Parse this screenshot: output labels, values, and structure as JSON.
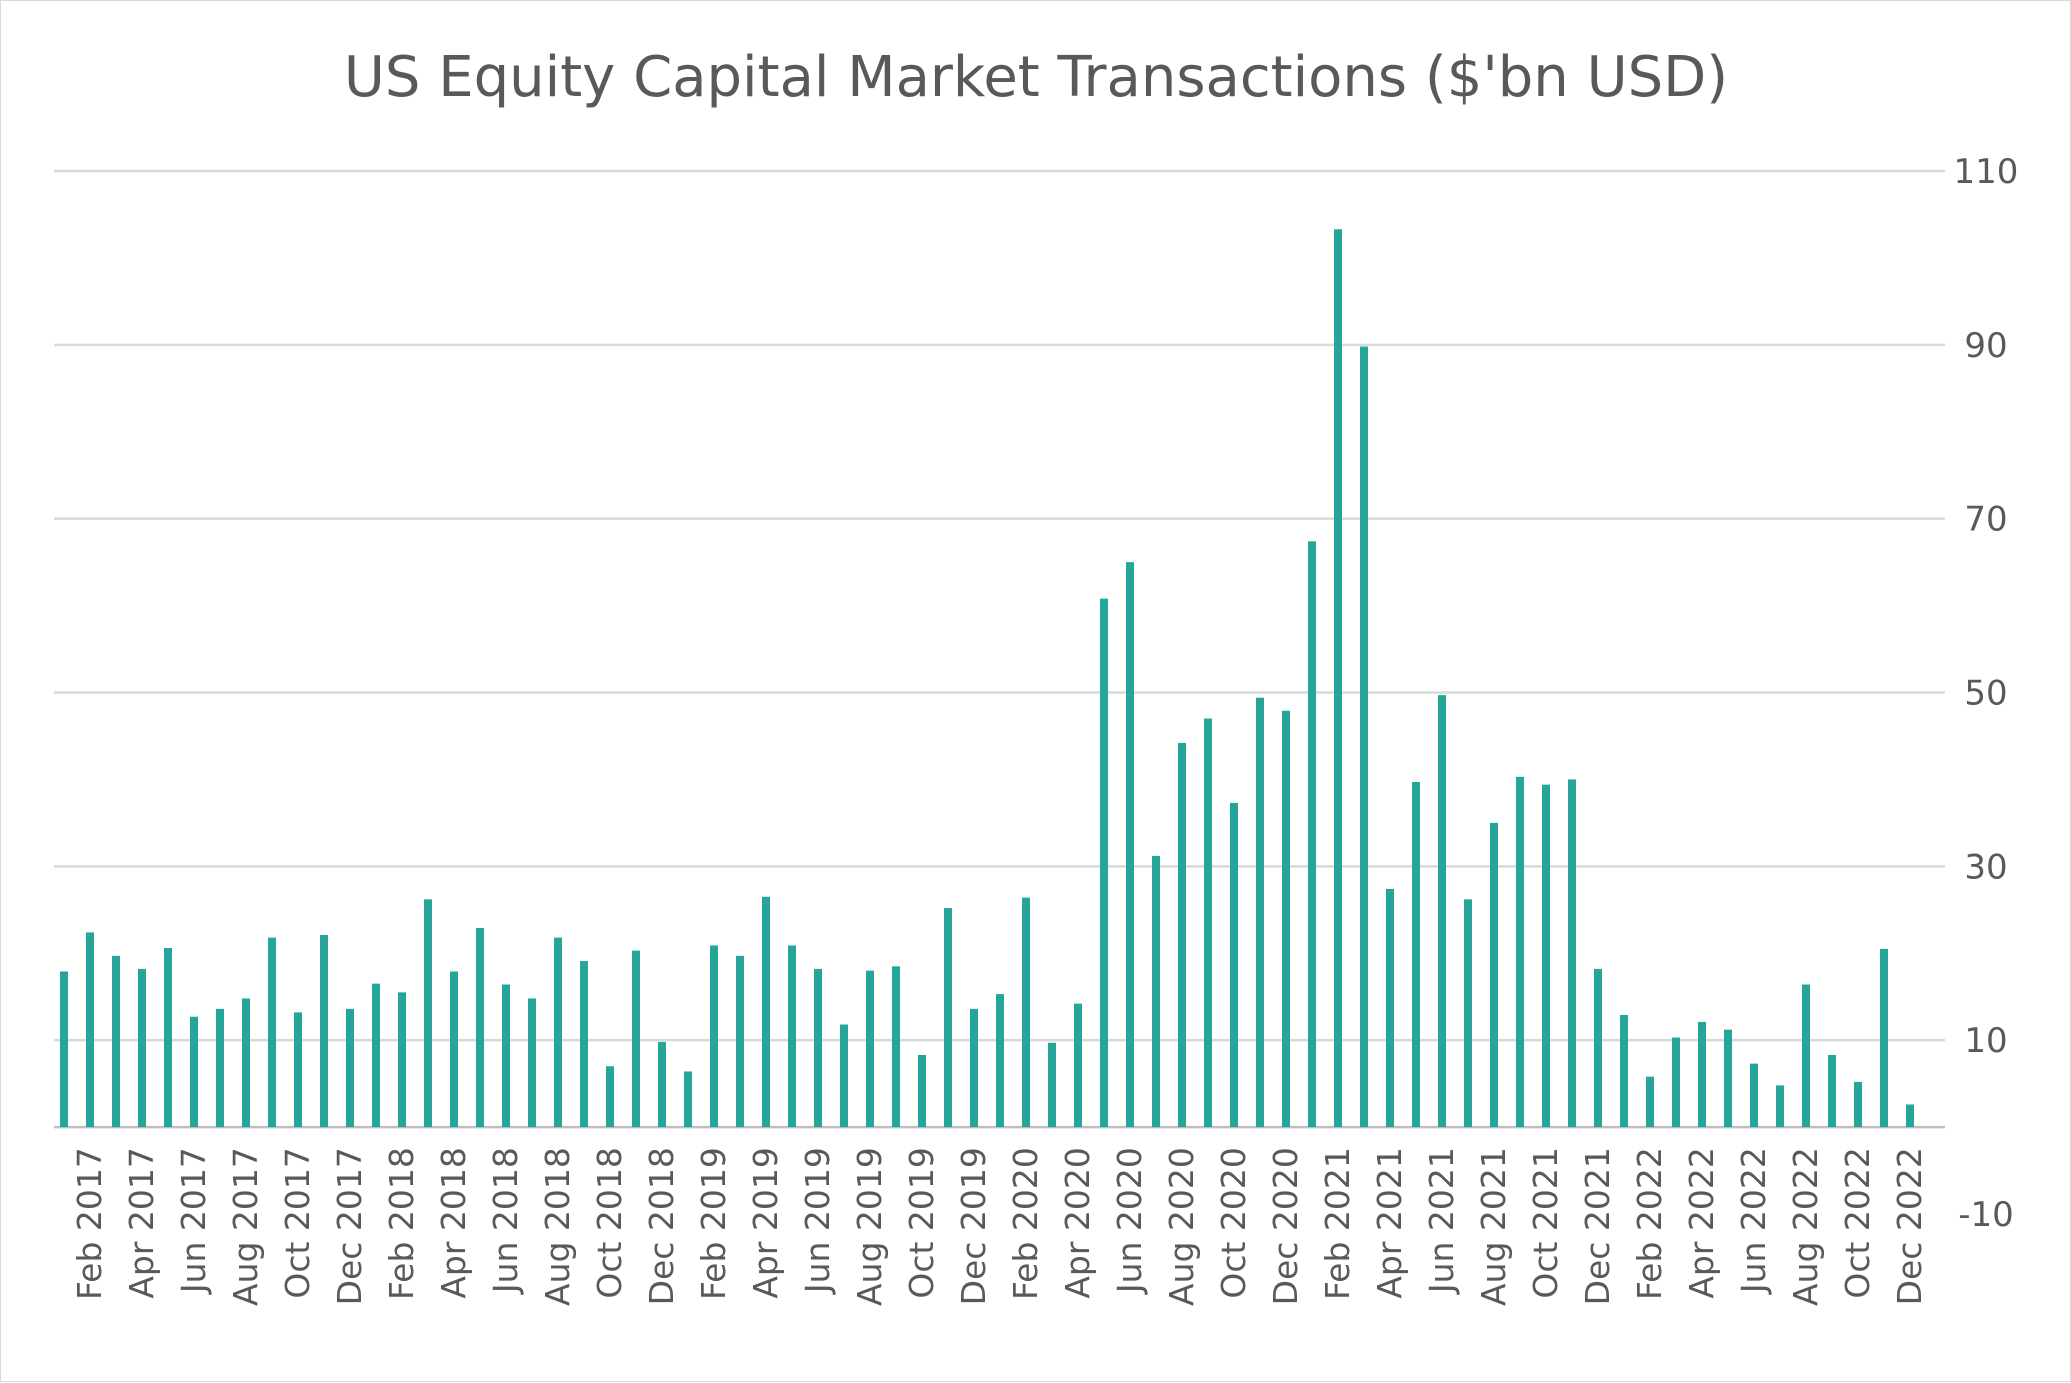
{
  "chart_data": {
    "type": "bar",
    "title": "US Equity Capital Market Transactions ($'bn USD)",
    "xlabel": "",
    "ylabel": "",
    "ylim": [
      -10,
      110
    ],
    "yticks": [
      110,
      90,
      70,
      50,
      30,
      10,
      -10
    ],
    "grid": true,
    "legend": "none",
    "bar_color": "#26a69a",
    "y_axis_side": "right",
    "categories": [
      "Jan 2017",
      "Feb 2017",
      "Mar 2017",
      "Apr 2017",
      "May 2017",
      "Jun 2017",
      "Jul 2017",
      "Aug 2017",
      "Sep 2017",
      "Oct 2017",
      "Nov 2017",
      "Dec 2017",
      "Jan 2018",
      "Feb 2018",
      "Mar 2018",
      "Apr 2018",
      "May 2018",
      "Jun 2018",
      "Jul 2018",
      "Aug 2018",
      "Sep 2018",
      "Oct 2018",
      "Nov 2018",
      "Dec 2018",
      "Jan 2019",
      "Feb 2019",
      "Mar 2019",
      "Apr 2019",
      "May 2019",
      "Jun 2019",
      "Jul 2019",
      "Aug 2019",
      "Sep 2019",
      "Oct 2019",
      "Nov 2019",
      "Dec 2019",
      "Jan 2020",
      "Feb 2020",
      "Mar 2020",
      "Apr 2020",
      "May 2020",
      "Jun 2020",
      "Jul 2020",
      "Aug 2020",
      "Sep 2020",
      "Oct 2020",
      "Nov 2020",
      "Dec 2020",
      "Jan 2021",
      "Feb 2021",
      "Mar 2021",
      "Apr 2021",
      "May 2021",
      "Jun 2021",
      "Jul 2021",
      "Aug 2021",
      "Sep 2021",
      "Oct 2021",
      "Nov 2021",
      "Dec 2021",
      "Jan 2022",
      "Feb 2022",
      "Mar 2022",
      "Apr 2022",
      "May 2022",
      "Jun 2022",
      "Jul 2022",
      "Aug 2022",
      "Sep 2022",
      "Oct 2022",
      "Nov 2022",
      "Dec 2022"
    ],
    "values": [
      17.9,
      22.4,
      19.7,
      18.2,
      20.6,
      12.7,
      13.6,
      14.8,
      21.8,
      13.2,
      22.1,
      13.6,
      16.5,
      15.5,
      26.2,
      17.9,
      22.9,
      16.4,
      14.8,
      21.8,
      19.1,
      7.0,
      20.3,
      9.8,
      6.4,
      20.9,
      19.7,
      26.5,
      20.9,
      18.2,
      11.8,
      18.0,
      18.5,
      8.3,
      25.2,
      13.6,
      15.3,
      26.4,
      9.7,
      14.2,
      60.8,
      65.0,
      31.2,
      44.2,
      47.0,
      37.3,
      49.4,
      47.9,
      67.4,
      103.3,
      89.8,
      27.4,
      39.7,
      49.7,
      26.2,
      35.0,
      40.3,
      39.4,
      40.0,
      18.2,
      12.9,
      5.8,
      10.3,
      12.1,
      11.2,
      7.3,
      4.8,
      16.4,
      8.3,
      5.2,
      20.5,
      2.6
    ],
    "labeled_every": 2,
    "labeled_offset": 1
  }
}
